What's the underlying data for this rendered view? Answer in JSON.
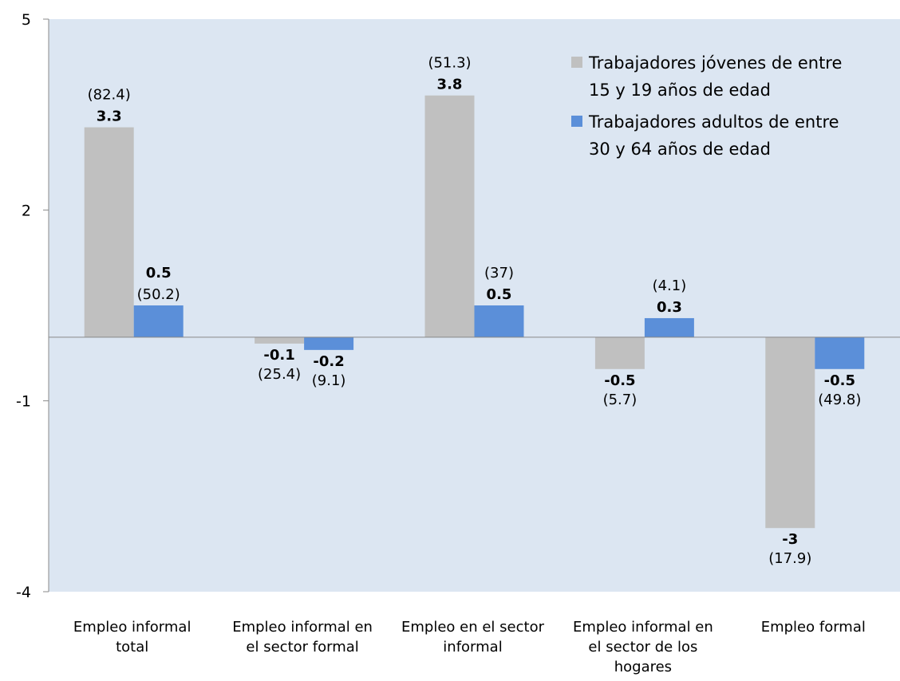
{
  "chart_data": {
    "type": "bar",
    "categories": [
      [
        "Empleo informal",
        "total"
      ],
      [
        "Empleo informal en",
        "el sector formal"
      ],
      [
        "Empleo en el sector",
        "informal"
      ],
      [
        "Empleo informal en",
        "el sector de los",
        "hogares"
      ],
      [
        "Empleo formal"
      ]
    ],
    "series": [
      {
        "name": "Trabajadores jóvenes de entre 15 y 19 años de edad",
        "legend_lines": [
          "Trabajadores jóvenes de entre",
          "15 y 19 años de edad"
        ],
        "color": "#c0c0c0",
        "values": [
          3.3,
          -0.1,
          3.8,
          -0.5,
          -3
        ],
        "value_labels": [
          "3.3",
          "-0.1",
          "3.8",
          "-0.5",
          "-3"
        ],
        "paren_labels": [
          "(82.4)",
          "(25.4)",
          "(51.3)",
          "(5.7)",
          "(17.9)"
        ]
      },
      {
        "name": "Trabajadores adultos de entre 30 y 64 años de edad",
        "legend_lines": [
          "Trabajadores adultos de entre",
          "30 y 64 años de edad"
        ],
        "color": "#5b8fd9",
        "values": [
          0.5,
          -0.2,
          0.5,
          0.3,
          -0.5
        ],
        "value_labels": [
          "0.5",
          "-0.2",
          "0.5",
          "0.3",
          "-0.5"
        ],
        "paren_labels": [
          "(50.2)",
          "(9.1)",
          "(37)",
          "(4.1)",
          "(49.8)"
        ]
      }
    ],
    "yticks": [
      5,
      2,
      -1,
      -4
    ],
    "ytick_labels": [
      "5",
      "2",
      "-1",
      "-4"
    ],
    "ylim": [
      -4,
      5
    ],
    "legend_position": "top-right",
    "plot_background": "#dce6f2",
    "grid": false
  }
}
